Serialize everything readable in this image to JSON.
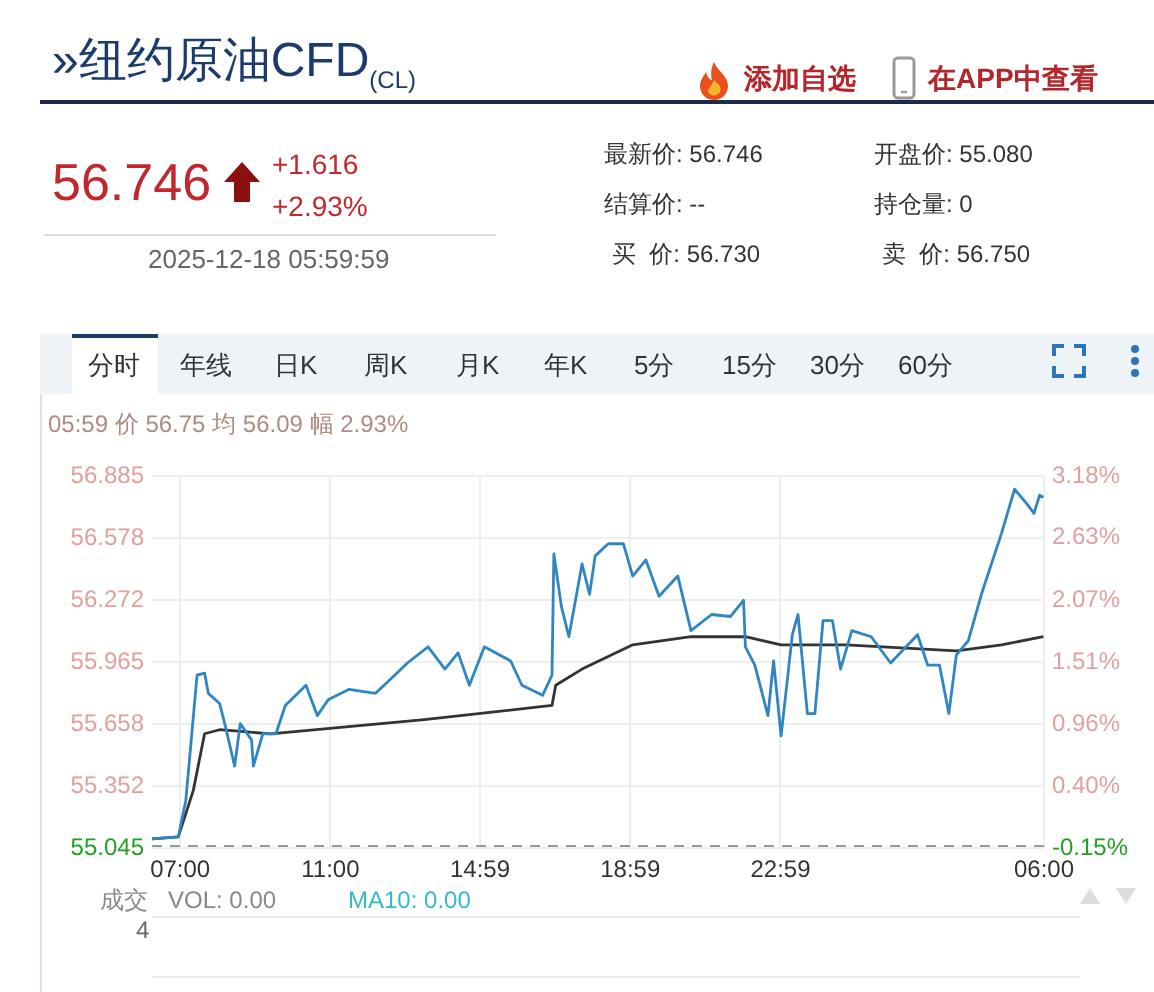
{
  "chart_data": {
    "type": "line",
    "title": "»纽约原油CFD$_{(CL)}$",
    "xlim": [
      "2025-12-17T06:15",
      "2025-12-18T06:00"
    ],
    "xticks": [
      {
        "value": "2025-12-17T07:00",
        "label": "07:00"
      },
      {
        "value": "2025-12-17T11:00",
        "label": "11:00"
      },
      {
        "value": "2025-12-17T14:59",
        "label": "14:59"
      },
      {
        "value": "2025-12-17T18:59",
        "label": "18:59"
      },
      {
        "value": "2025-12-17T22:59",
        "label": "22:59"
      },
      {
        "value": "2025-12-18T06:00",
        "label": "06:00"
      }
    ],
    "ylim": [
      55.045,
      56.885
    ],
    "yticks": [
      55.045,
      55.352,
      55.658,
      55.965,
      56.272,
      56.578,
      56.885
    ],
    "y2lim": [
      -0.15,
      3.18
    ],
    "y2ticks": [
      {
        "value": -0.15,
        "label": "-0.15%"
      },
      {
        "value": 0.4,
        "label": "0.40%"
      },
      {
        "value": 0.96,
        "label": "0.96%"
      },
      {
        "value": 1.51,
        "label": "1.51%"
      },
      {
        "value": 2.07,
        "label": "2.07%"
      },
      {
        "value": 2.63,
        "label": "2.63%"
      },
      {
        "value": 3.18,
        "label": "3.18%"
      }
    ],
    "grid": true,
    "legend": false,
    "marker": "none",
    "ref_lines": [
      {
        "axis": "y",
        "value": 55.045,
        "color": "#999999",
        "line_style": "dashed"
      }
    ],
    "series": [
      {
        "color": "#2f86c0",
        "x": [
          "2025-12-17T06:15",
          "2025-12-17T06:57",
          "2025-12-17T07:09",
          "2025-12-17T07:27",
          "2025-12-17T07:39",
          "2025-12-17T07:45",
          "2025-12-17T08:03",
          "2025-12-17T08:12",
          "2025-12-17T08:27",
          "2025-12-17T08:36",
          "2025-12-17T08:54",
          "2025-12-17T08:57",
          "2025-12-17T09:12",
          "2025-12-17T09:33",
          "2025-12-17T09:48",
          "2025-12-17T10:21",
          "2025-12-17T10:39",
          "2025-12-17T10:57",
          "2025-12-17T11:30",
          "2025-12-17T12:12",
          "2025-12-17T12:36",
          "2025-12-17T13:03",
          "2025-12-17T13:36",
          "2025-12-17T14:03",
          "2025-12-17T14:24",
          "2025-12-17T14:42",
          "2025-12-17T15:06",
          "2025-12-17T15:48",
          "2025-12-17T16:06",
          "2025-12-17T16:39",
          "2025-12-17T16:54",
          "2025-12-17T16:57",
          "2025-12-17T17:09",
          "2025-12-17T17:21",
          "2025-12-17T17:42",
          "2025-12-17T17:54",
          "2025-12-17T18:03",
          "2025-12-17T18:24",
          "2025-12-17T18:48",
          "2025-12-17T19:03",
          "2025-12-17T19:24",
          "2025-12-17T19:45",
          "2025-12-17T20:15",
          "2025-12-17T20:36",
          "2025-12-17T21:09",
          "2025-12-17T21:39",
          "2025-12-17T22:00",
          "2025-12-17T22:03",
          "2025-12-17T22:18",
          "2025-12-17T22:39",
          "2025-12-17T22:48",
          "2025-12-17T23:00",
          "2025-12-17T23:18",
          "2025-12-17T23:27",
          "2025-12-17T23:42",
          "2025-12-17T23:54",
          "2025-12-18T00:07",
          "2025-12-18T00:22",
          "2025-12-18T00:35",
          "2025-12-18T00:53",
          "2025-12-18T01:24",
          "2025-12-18T01:55",
          "2025-12-18T02:38",
          "2025-12-18T02:54",
          "2025-12-18T03:13",
          "2025-12-18T03:28",
          "2025-12-18T03:40",
          "2025-12-18T03:59",
          "2025-12-18T04:20",
          "2025-12-18T04:52",
          "2025-12-18T05:13",
          "2025-12-18T05:32",
          "2025-12-18T05:44",
          "2025-12-18T05:53",
          "2025-12-18T05:59"
        ],
        "values": [
          55.09,
          55.1,
          55.28,
          55.9,
          55.91,
          55.81,
          55.76,
          55.65,
          55.45,
          55.66,
          55.58,
          55.45,
          55.61,
          55.61,
          55.75,
          55.85,
          55.7,
          55.78,
          55.83,
          55.81,
          55.88,
          55.96,
          56.04,
          55.93,
          56.01,
          55.85,
          56.04,
          55.97,
          55.85,
          55.8,
          55.9,
          56.5,
          56.24,
          56.09,
          56.45,
          56.3,
          56.49,
          56.55,
          56.55,
          56.39,
          56.47,
          56.29,
          56.39,
          56.12,
          56.2,
          56.19,
          56.27,
          56.04,
          55.95,
          55.7,
          55.97,
          55.6,
          56.1,
          56.2,
          55.71,
          55.71,
          56.17,
          56.17,
          55.93,
          56.12,
          56.09,
          55.96,
          56.1,
          55.95,
          55.95,
          55.71,
          56.0,
          56.07,
          56.3,
          56.6,
          56.82,
          56.75,
          56.7,
          56.79,
          56.78
        ]
      },
      {
        "color": "#333333",
        "x": [
          "2025-12-17T06:15",
          "2025-12-17T06:57",
          "2025-12-17T07:21",
          "2025-12-17T07:39",
          "2025-12-17T08:03",
          "2025-12-17T09:24",
          "2025-12-17T13:30",
          "2025-12-17T16:54",
          "2025-12-17T17:00",
          "2025-12-17T17:42",
          "2025-12-17T19:03",
          "2025-12-17T20:36",
          "2025-12-17T22:03",
          "2025-12-17T23:00",
          "2025-12-18T00:44",
          "2025-12-18T03:40",
          "2025-12-18T04:52",
          "2025-12-18T05:59"
        ],
        "values": [
          55.09,
          55.1,
          55.33,
          55.61,
          55.63,
          55.61,
          55.68,
          55.75,
          55.85,
          55.93,
          56.05,
          56.09,
          56.09,
          56.05,
          56.05,
          56.02,
          56.05,
          56.09
        ]
      }
    ],
    "annotations": [
      "添加自选",
      "在APP中查看",
      "56.746",
      "+1.616",
      "+2.93%",
      "2025-12-18 05:59:59",
      "最新价: 56.746",
      "结算价: --",
      "买  价: 56.730",
      "开盘价: 55.080",
      "持仓量: 0",
      "卖  价: 56.750",
      "分时",
      "年线",
      "日K",
      "周K",
      "月K",
      "年K",
      "5分",
      "15分",
      "30分",
      "60分",
      "05:59 价 56.75 均 56.09 幅 2.93%",
      "成交",
      "VOL: 0.00",
      "MA10: 0.00",
      "4"
    ]
  }
}
